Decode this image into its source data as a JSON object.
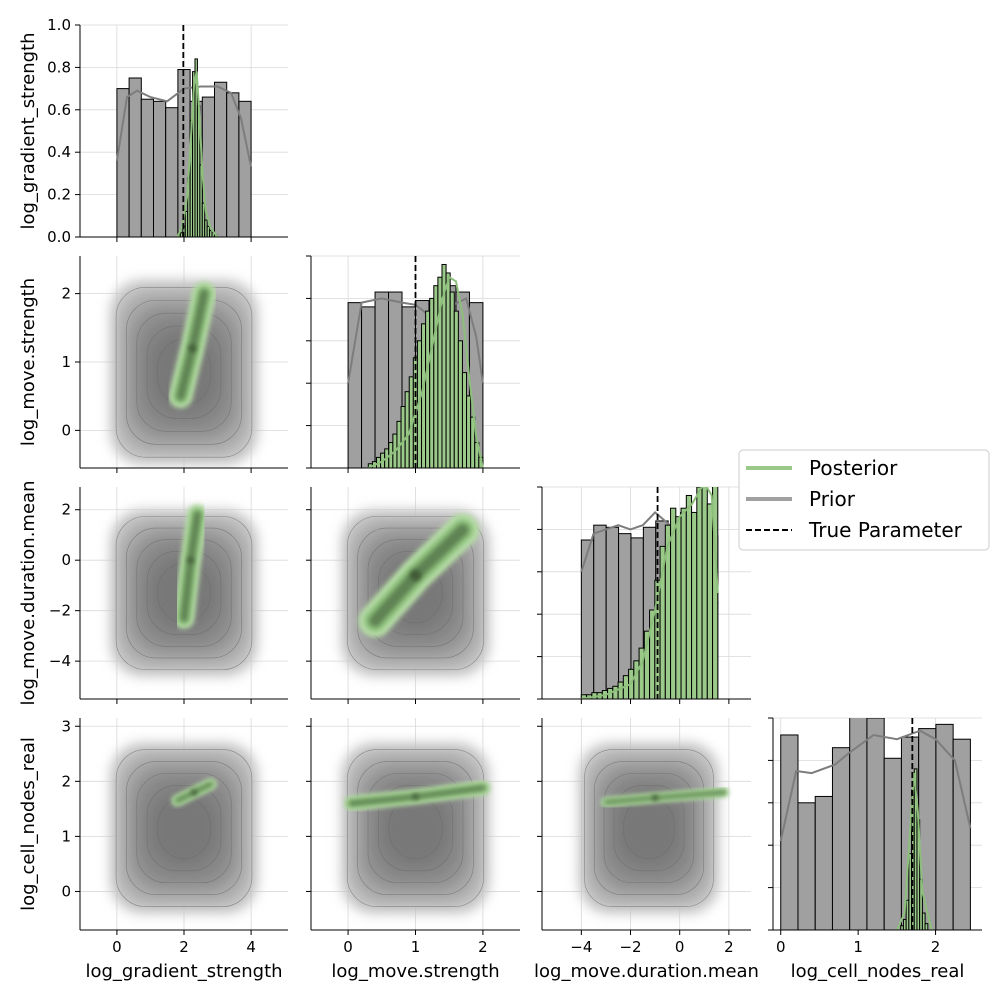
{
  "colors": {
    "posterior": "#9bc98a",
    "posterior_dark": "#3f5a36",
    "prior": "#a0a0a0",
    "prior_dark": "#555555",
    "true_line": "#000000",
    "grid": "#d9d9d9"
  },
  "legend": {
    "placement": "right-middle",
    "entries": [
      {
        "key": "posterior",
        "label": "Posterior"
      },
      {
        "key": "prior",
        "label": "Prior"
      },
      {
        "key": "true",
        "label": "True Parameter"
      }
    ]
  },
  "chart_data": {
    "type": "pairplot",
    "grid": true,
    "params": [
      "log_gradient_strength",
      "log_move.strength",
      "log_move.duration.mean",
      "log_cell_nodes_real"
    ],
    "true_values": [
      1.98,
      1.0,
      -0.9,
      1.7
    ],
    "axes": [
      {
        "xlim": [
          -1.1,
          5.1
        ],
        "ylim": [
          -1.1,
          5.1
        ],
        "ticks": [
          0,
          2,
          4
        ]
      },
      {
        "xlim": [
          -0.55,
          2.55
        ],
        "ylim": [
          -0.55,
          2.55
        ],
        "ticks": [
          0,
          1,
          2
        ]
      },
      {
        "xlim": [
          -5.6,
          2.9
        ],
        "ylim": [
          -5.5,
          2.9
        ],
        "ticks": [
          -4,
          -2,
          0,
          2
        ]
      },
      {
        "xlim": [
          -0.1,
          2.6
        ],
        "ylim": [
          -0.7,
          3.15
        ],
        "ticks": [
          0,
          1,
          2,
          3
        ]
      }
    ],
    "diag_ylim": [
      0,
      1.0
    ],
    "diag_yticks": [
      0.0,
      0.2,
      0.4,
      0.6,
      0.8,
      1.0
    ],
    "diagonal": [
      {
        "prior_edges": [
          0,
          4
        ],
        "prior_heights": [
          0.7,
          0.75,
          0.65,
          0.64,
          0.61,
          0.79,
          0.64,
          0.66,
          0.73,
          0.68,
          0.64
        ],
        "prior_kde": [
          [
            0,
            0.36
          ],
          [
            0.3,
            0.66
          ],
          [
            0.6,
            0.69
          ],
          [
            1.0,
            0.66
          ],
          [
            1.5,
            0.64
          ],
          [
            2.0,
            0.7
          ],
          [
            2.5,
            0.71
          ],
          [
            3.0,
            0.71
          ],
          [
            3.4,
            0.68
          ],
          [
            3.7,
            0.56
          ],
          [
            4.0,
            0.33
          ]
        ],
        "post_edges": [
          1.82,
          2.98
        ],
        "post_heights": [
          0.01,
          0.02,
          0.05,
          0.12,
          0.28,
          0.55,
          0.78,
          0.84,
          0.62,
          0.34,
          0.16,
          0.08,
          0.05,
          0.03,
          0.02,
          0.01
        ],
        "post_kde": [
          [
            1.8,
            0.0
          ],
          [
            1.95,
            0.05
          ],
          [
            2.1,
            0.2
          ],
          [
            2.2,
            0.45
          ],
          [
            2.3,
            0.72
          ],
          [
            2.38,
            0.78
          ],
          [
            2.45,
            0.6
          ],
          [
            2.55,
            0.3
          ],
          [
            2.65,
            0.12
          ],
          [
            2.8,
            0.04
          ],
          [
            3.0,
            0.0
          ]
        ]
      },
      {
        "prior_edges": [
          0,
          2
        ],
        "prior_heights": [
          0.78,
          0.76,
          0.83,
          0.83,
          0.76,
          0.79,
          0.68,
          0.86,
          0.83,
          0.78
        ],
        "prior_kde": [
          [
            0,
            0.4
          ],
          [
            0.2,
            0.78
          ],
          [
            0.5,
            0.8
          ],
          [
            0.8,
            0.78
          ],
          [
            1.0,
            0.77
          ],
          [
            1.2,
            0.72
          ],
          [
            1.5,
            0.76
          ],
          [
            1.75,
            0.8
          ],
          [
            1.9,
            0.62
          ],
          [
            2.0,
            0.4
          ]
        ],
        "post_edges": [
          0.3,
          2.0
        ],
        "post_heights": [
          0.02,
          0.03,
          0.05,
          0.07,
          0.09,
          0.12,
          0.16,
          0.22,
          0.29,
          0.36,
          0.43,
          0.52,
          0.6,
          0.68,
          0.74,
          0.8,
          0.86,
          0.9,
          0.96,
          0.92,
          0.83,
          0.74,
          0.6,
          0.45,
          0.34,
          0.24,
          0.12,
          0.05
        ],
        "post_kde": [
          [
            0.3,
            0.0
          ],
          [
            0.5,
            0.03
          ],
          [
            0.7,
            0.08
          ],
          [
            0.9,
            0.16
          ],
          [
            1.1,
            0.36
          ],
          [
            1.25,
            0.58
          ],
          [
            1.4,
            0.8
          ],
          [
            1.5,
            0.9
          ],
          [
            1.6,
            0.88
          ],
          [
            1.7,
            0.72
          ],
          [
            1.8,
            0.42
          ],
          [
            1.9,
            0.15
          ],
          [
            2.0,
            0.0
          ]
        ]
      },
      {
        "prior_edges": [
          -4,
          1.55
        ],
        "prior_heights": [
          0.75,
          0.82,
          0.81,
          0.78,
          0.76,
          0.81,
          0.84,
          0.81,
          0.88,
          0.8,
          0.77
        ],
        "prior_kde": [
          [
            -4,
            0.6
          ],
          [
            -3.5,
            0.78
          ],
          [
            -3,
            0.8
          ],
          [
            -2.5,
            0.82
          ],
          [
            -2,
            0.8
          ],
          [
            -1.5,
            0.82
          ],
          [
            -1,
            0.88
          ],
          [
            -0.5,
            0.83
          ],
          [
            0,
            0.77
          ],
          [
            0.5,
            0.78
          ],
          [
            1,
            0.82
          ],
          [
            1.3,
            0.7
          ],
          [
            1.55,
            0.45
          ]
        ],
        "post_edges": [
          -4,
          1.55
        ],
        "post_heights": [
          0.02,
          0.02,
          0.03,
          0.03,
          0.04,
          0.05,
          0.06,
          0.08,
          0.11,
          0.14,
          0.18,
          0.24,
          0.32,
          0.42,
          0.56,
          0.72,
          0.82,
          0.9,
          0.86,
          0.9,
          0.96,
          0.88,
          1.0,
          1.12,
          0.92,
          1.06
        ],
        "post_kde": [
          [
            -4,
            0.0
          ],
          [
            -3,
            0.02
          ],
          [
            -2,
            0.07
          ],
          [
            -1.5,
            0.18
          ],
          [
            -1,
            0.42
          ],
          [
            -0.5,
            0.72
          ],
          [
            0,
            0.86
          ],
          [
            0.5,
            0.92
          ],
          [
            1.0,
            1.02
          ],
          [
            1.3,
            0.96
          ],
          [
            1.55,
            0.5
          ]
        ]
      },
      {
        "prior_edges": [
          0,
          2.45
        ],
        "prior_heights": [
          0.92,
          0.6,
          0.63,
          0.86,
          1.03,
          1.0,
          0.81,
          0.91,
          0.95,
          0.97,
          0.9
        ],
        "prior_kde": [
          [
            0,
            0.42
          ],
          [
            0.2,
            0.75
          ],
          [
            0.4,
            0.74
          ],
          [
            0.7,
            0.78
          ],
          [
            0.9,
            0.84
          ],
          [
            1.2,
            0.92
          ],
          [
            1.5,
            0.9
          ],
          [
            1.8,
            0.94
          ],
          [
            2.0,
            0.9
          ],
          [
            2.25,
            0.8
          ],
          [
            2.45,
            0.48
          ]
        ],
        "post_edges": [
          1.55,
          1.9
        ],
        "post_heights": [
          0.02,
          0.05,
          0.14,
          0.36,
          0.66,
          0.76,
          0.52,
          0.24,
          0.08,
          0.03
        ],
        "post_kde": [
          [
            1.5,
            0.0
          ],
          [
            1.6,
            0.08
          ],
          [
            1.66,
            0.4
          ],
          [
            1.72,
            0.74
          ],
          [
            1.77,
            0.56
          ],
          [
            1.83,
            0.18
          ],
          [
            1.95,
            0.0
          ]
        ]
      }
    ],
    "joint": [
      {
        "row": 1,
        "col": 0,
        "prior_box": [
          -0.2,
          -0.5,
          4.2,
          2.2
        ],
        "posterior_ridge": [
          [
            1.9,
            0.5
          ],
          [
            2.25,
            1.2
          ],
          [
            2.6,
            2.0
          ]
        ],
        "posterior_width": 0.45
      },
      {
        "row": 2,
        "col": 0,
        "prior_box": [
          -0.2,
          -4.6,
          4.2,
          2.0
        ],
        "posterior_ridge": [
          [
            2.0,
            -2.3
          ],
          [
            2.2,
            0.0
          ],
          [
            2.4,
            1.8
          ]
        ],
        "posterior_width": 0.5
      },
      {
        "row": 2,
        "col": 1,
        "prior_box": [
          -0.1,
          -4.6,
          2.1,
          2.0
        ],
        "posterior_ridge": [
          [
            0.4,
            -2.4
          ],
          [
            1.0,
            -0.6
          ],
          [
            1.7,
            1.2
          ]
        ],
        "posterior_width": 0.9
      },
      {
        "row": 3,
        "col": 0,
        "prior_box": [
          -0.2,
          -0.4,
          4.2,
          2.7
        ],
        "posterior_ridge": [
          [
            1.8,
            1.65
          ],
          [
            2.3,
            1.8
          ],
          [
            2.8,
            1.95
          ]
        ],
        "posterior_width": 0.14
      },
      {
        "row": 3,
        "col": 1,
        "prior_box": [
          -0.1,
          -0.4,
          2.1,
          2.7
        ],
        "posterior_ridge": [
          [
            0.05,
            1.6
          ],
          [
            1.0,
            1.72
          ],
          [
            2.0,
            1.88
          ]
        ],
        "posterior_width": 0.14
      },
      {
        "row": 3,
        "col": 2,
        "prior_box": [
          -4.1,
          -0.4,
          1.6,
          2.7
        ],
        "posterior_ridge": [
          [
            -3.0,
            1.62
          ],
          [
            -1.0,
            1.7
          ],
          [
            1.8,
            1.8
          ]
        ],
        "posterior_width": 0.14
      }
    ]
  }
}
